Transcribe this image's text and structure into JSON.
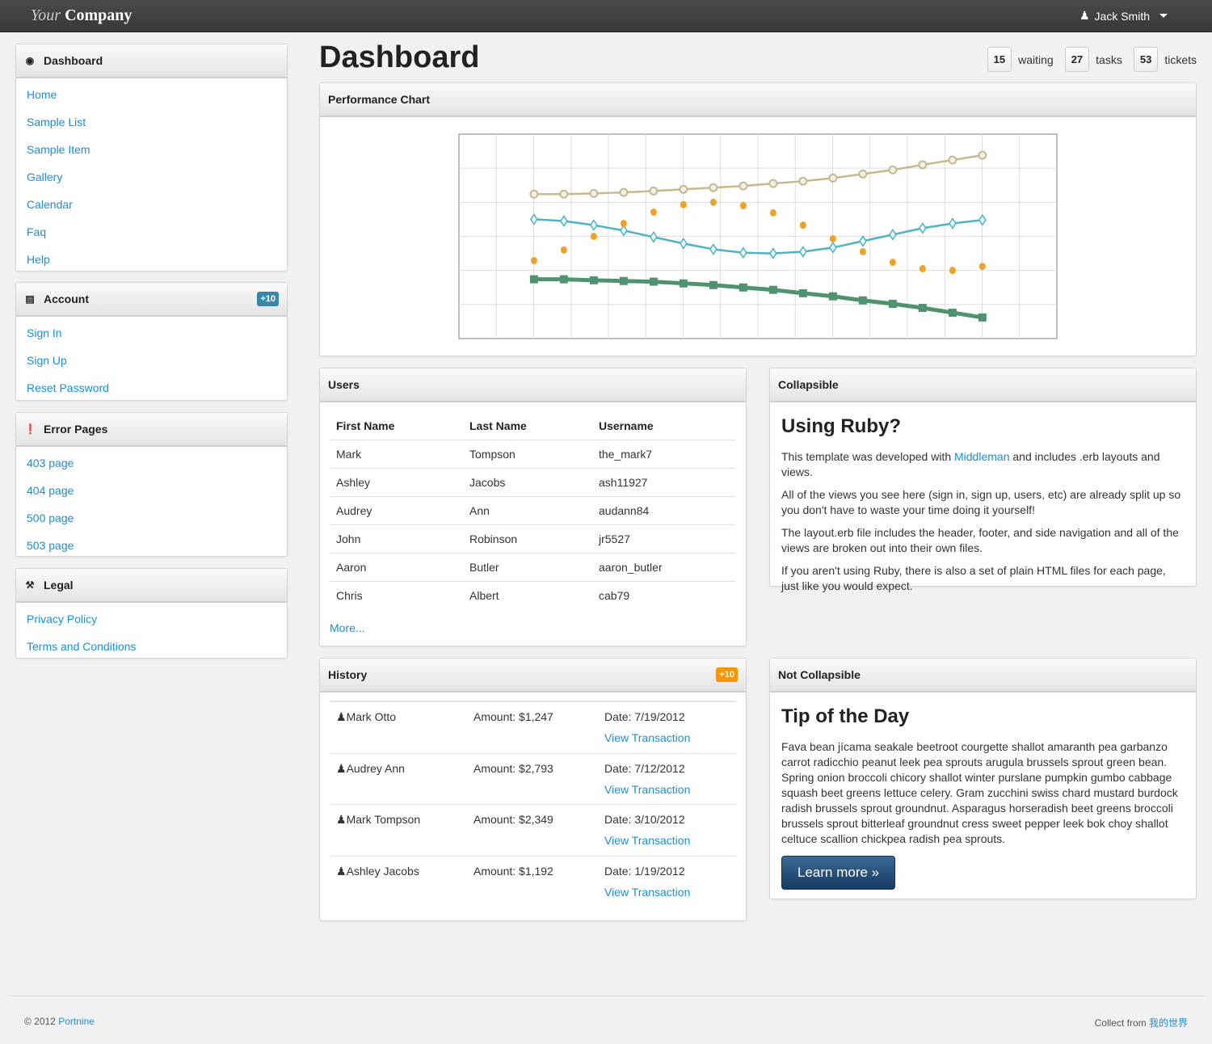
{
  "navbar": {
    "brand_italic": "Your",
    "brand_bold": "Company",
    "user": "Jack Smith"
  },
  "sidebar": [
    {
      "title": "Dashboard",
      "icon": "dashboard-icon",
      "items": [
        "Home",
        "Sample List",
        "Sample Item",
        "Gallery",
        "Calendar",
        "Faq",
        "Help"
      ]
    },
    {
      "title": "Account",
      "icon": "briefcase-icon",
      "badge": "+10",
      "items": [
        "Sign In",
        "Sign Up",
        "Reset Password"
      ]
    },
    {
      "title": "Error Pages",
      "icon": "exclamation-icon",
      "items": [
        "403 page",
        "404 page",
        "500 page",
        "503 page"
      ]
    },
    {
      "title": "Legal",
      "icon": "gavel-icon",
      "items": [
        "Privacy Policy",
        "Terms and Conditions"
      ]
    }
  ],
  "page_title": "Dashboard",
  "stats": [
    {
      "n": "15",
      "label": "waiting"
    },
    {
      "n": "27",
      "label": "tasks"
    },
    {
      "n": "53",
      "label": "tickets"
    }
  ],
  "performance": {
    "title": "Performance Chart"
  },
  "chart_data": {
    "type": "line",
    "title": "",
    "grid": true,
    "x": [
      1,
      2,
      3,
      4,
      5,
      6,
      7,
      8,
      9,
      10,
      11,
      12,
      13,
      14,
      15,
      16
    ],
    "xlim": [
      -1.51,
      18.49
    ],
    "ylim": [
      0,
      6
    ],
    "series": [
      {
        "color": "#c8b98a",
        "marker": "circle",
        "values": [
          4.24,
          4.24,
          4.26,
          4.29,
          4.33,
          4.38,
          4.43,
          4.48,
          4.55,
          4.62,
          4.71,
          4.83,
          4.95,
          5.1,
          5.24,
          5.38
        ]
      },
      {
        "color": "#4fb3c8",
        "marker": "diamond",
        "values": [
          3.5,
          3.45,
          3.33,
          3.17,
          2.98,
          2.79,
          2.62,
          2.52,
          2.5,
          2.55,
          2.67,
          2.86,
          3.05,
          3.24,
          3.38,
          3.48
        ]
      },
      {
        "color": "#eea22a",
        "marker": "dot",
        "line": false,
        "values": [
          2.29,
          2.6,
          3.0,
          3.38,
          3.71,
          3.93,
          4.0,
          3.9,
          3.69,
          3.33,
          2.93,
          2.55,
          2.24,
          2.05,
          2.0,
          2.12
        ]
      },
      {
        "color": "#4e9270",
        "marker": "square",
        "values": [
          1.74,
          1.74,
          1.71,
          1.69,
          1.67,
          1.62,
          1.57,
          1.5,
          1.43,
          1.33,
          1.24,
          1.12,
          1.02,
          0.9,
          0.76,
          0.62
        ]
      }
    ]
  },
  "users": {
    "title": "Users",
    "columns": [
      "First Name",
      "Last Name",
      "Username"
    ],
    "rows": [
      [
        "Mark",
        "Tompson",
        "the_mark7"
      ],
      [
        "Ashley",
        "Jacobs",
        "ash11927"
      ],
      [
        "Audrey",
        "Ann",
        "audann84"
      ],
      [
        "John",
        "Robinson",
        "jr5527"
      ],
      [
        "Aaron",
        "Butler",
        "aaron_butler"
      ],
      [
        "Chris",
        "Albert",
        "cab79"
      ]
    ],
    "more": "More..."
  },
  "history": {
    "title": "History",
    "badge": "+10",
    "link_label": "View Transaction",
    "rows": [
      {
        "name": "Mark Otto",
        "amount": "Amount: $1,247",
        "date": "Date: 7/19/2012"
      },
      {
        "name": "Audrey Ann",
        "amount": "Amount: $2,793",
        "date": "Date: 7/12/2012"
      },
      {
        "name": "Mark Tompson",
        "amount": "Amount: $2,349",
        "date": "Date: 3/10/2012"
      },
      {
        "name": "Ashley Jacobs",
        "amount": "Amount: $1,192",
        "date": "Date: 1/19/2012"
      }
    ]
  },
  "collapsible": {
    "title": "Collapsible",
    "heading": "Using Ruby?",
    "p1_pre": "This template was developed with ",
    "p1_link": "Middleman",
    "p1_post": " and includes .erb layouts and views.",
    "p2": "All of the views you see here (sign in, sign up, users, etc) are already split up so you don't have to waste your time doing it yourself!",
    "p3": "The layout.erb file includes the header, footer, and side navigation and all of the views are broken out into their own files.",
    "p4": "If you aren't using Ruby, there is also a set of plain HTML files for each page, just like you would expect."
  },
  "notcollapsible": {
    "title": "Not Collapsible",
    "heading": "Tip of the Day",
    "text": "Fava bean jícama seakale beetroot courgette shallot amaranth pea garbanzo carrot radicchio peanut leek pea sprouts arugula brussels sprout green bean. Spring onion broccoli chicory shallot winter purslane pumpkin gumbo cabbage squash beet greens lettuce celery. Gram zucchini swiss chard mustard burdock radish brussels sprout groundnut. Asparagus horseradish beet greens broccoli brussels sprout bitterleaf groundnut cress sweet pepper leek bok choy shallot celtuce scallion chickpea radish pea sprouts.",
    "button": "Learn more »"
  },
  "footer": {
    "copy": "© 2012 ",
    "copy_link": "Portnine",
    "collect": "Collect from ",
    "collect_link": "我的世界"
  },
  "colors": {
    "link": "#1a8fd8",
    "badge_blue": "#3a87ad",
    "badge_orange": "#f89406",
    "navbar": "#3f3f3f"
  }
}
